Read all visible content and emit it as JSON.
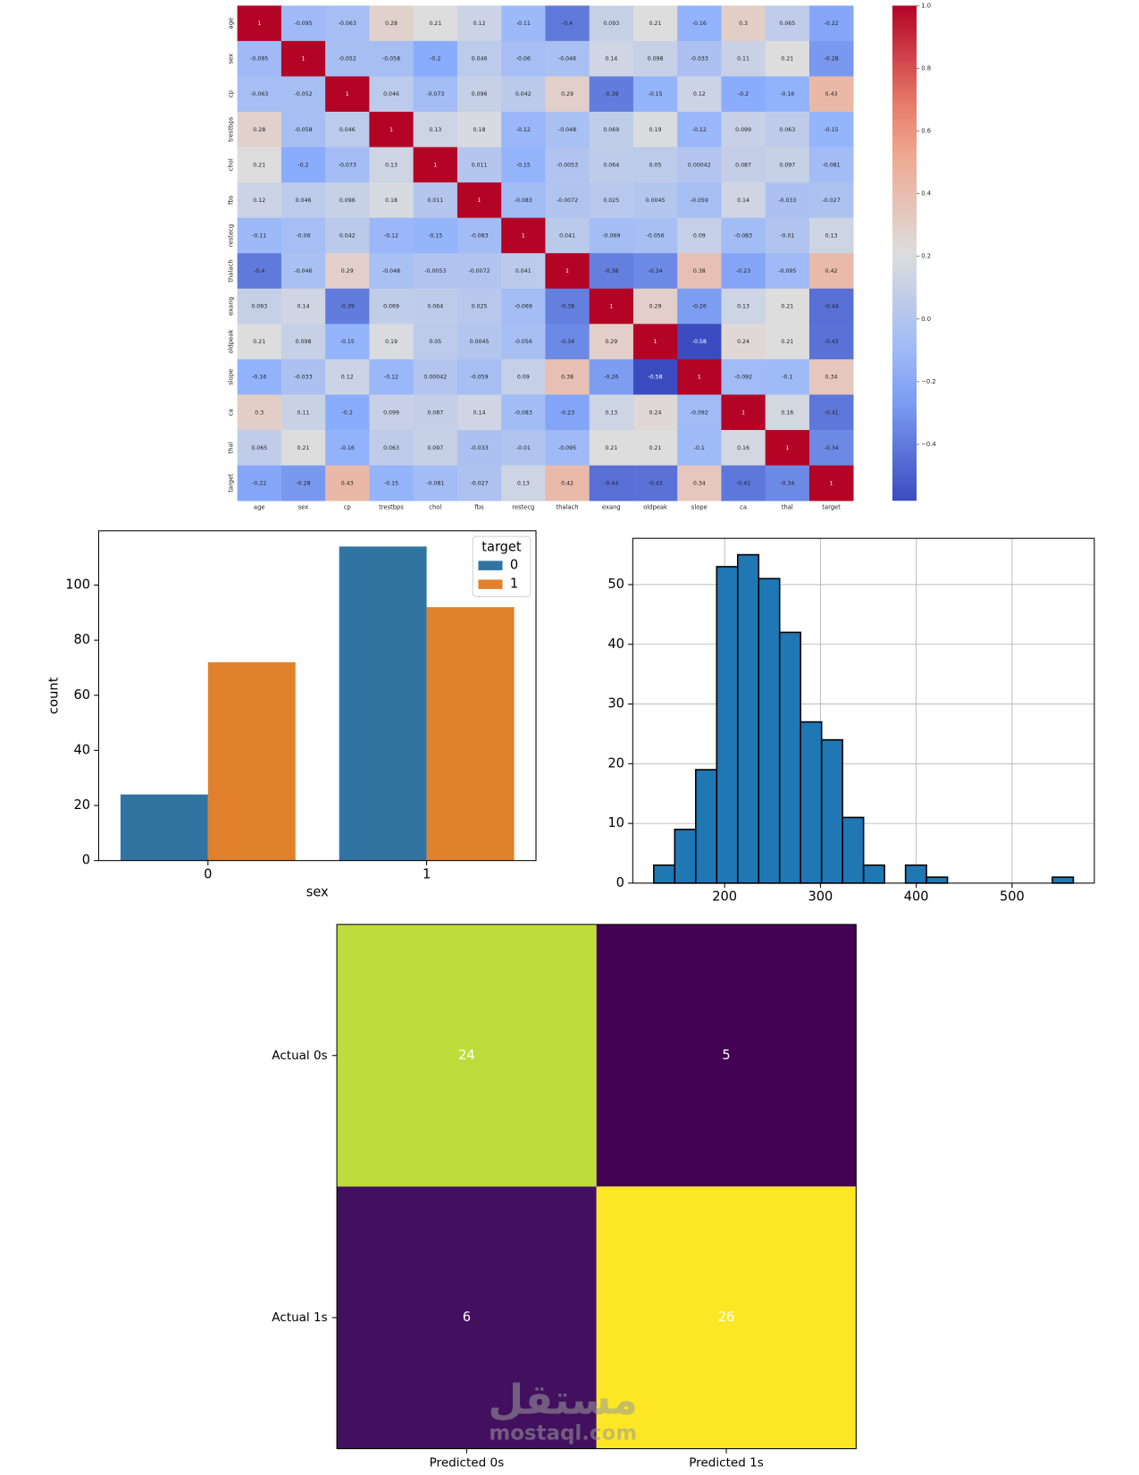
{
  "chart_data": [
    {
      "type": "heatmap",
      "colormap": "coolwarm",
      "zlim": [
        -0.58,
        1
      ],
      "categories": [
        "age",
        "sex",
        "cp",
        "trestbps",
        "chol",
        "fbs",
        "restecg",
        "thalach",
        "exang",
        "oldpeak",
        "slope",
        "ca",
        "thal",
        "target"
      ],
      "values": [
        [
          1,
          -0.095,
          -0.063,
          0.28,
          0.21,
          0.12,
          -0.11,
          -0.4,
          0.093,
          0.21,
          -0.16,
          0.3,
          0.065,
          -0.22
        ],
        [
          -0.095,
          1,
          -0.052,
          -0.058,
          -0.2,
          0.046,
          -0.06,
          -0.046,
          0.14,
          0.098,
          -0.033,
          0.11,
          0.21,
          -0.28
        ],
        [
          -0.063,
          -0.052,
          1,
          0.046,
          -0.073,
          0.096,
          0.042,
          0.29,
          -0.39,
          -0.15,
          0.12,
          -0.2,
          -0.16,
          0.43
        ],
        [
          0.28,
          -0.058,
          0.046,
          1,
          0.13,
          0.18,
          -0.12,
          -0.048,
          0.069,
          0.19,
          -0.12,
          0.099,
          0.063,
          -0.15
        ],
        [
          0.21,
          -0.2,
          -0.073,
          0.13,
          1,
          0.011,
          -0.15,
          -0.0053,
          0.064,
          0.05,
          0.00042,
          0.087,
          0.097,
          -0.081
        ],
        [
          0.12,
          0.046,
          0.096,
          0.18,
          0.011,
          1,
          -0.083,
          -0.0072,
          0.025,
          0.0045,
          -0.059,
          0.14,
          -0.033,
          -0.027
        ],
        [
          -0.11,
          -0.06,
          0.042,
          -0.12,
          -0.15,
          -0.083,
          1,
          0.041,
          -0.069,
          -0.056,
          0.09,
          -0.083,
          -0.01,
          0.13
        ],
        [
          -0.4,
          -0.046,
          0.29,
          -0.048,
          -0.0053,
          -0.0072,
          0.041,
          1,
          -0.38,
          -0.34,
          0.38,
          -0.23,
          -0.095,
          0.42
        ],
        [
          0.093,
          0.14,
          -0.39,
          0.069,
          0.064,
          0.025,
          -0.069,
          -0.38,
          1,
          0.29,
          -0.26,
          0.13,
          0.21,
          -0.44
        ],
        [
          0.21,
          0.098,
          -0.15,
          0.19,
          0.05,
          0.0045,
          -0.056,
          -0.34,
          0.29,
          1,
          -0.58,
          0.24,
          0.21,
          -0.43
        ],
        [
          -0.16,
          -0.033,
          0.12,
          -0.12,
          0.00042,
          -0.059,
          0.09,
          0.38,
          -0.26,
          -0.58,
          1,
          -0.092,
          -0.1,
          0.34
        ],
        [
          0.3,
          0.11,
          -0.2,
          0.099,
          0.087,
          0.14,
          -0.083,
          -0.23,
          0.13,
          0.24,
          -0.092,
          1,
          0.16,
          -0.41
        ],
        [
          0.065,
          0.21,
          -0.16,
          0.063,
          0.097,
          -0.033,
          -0.01,
          -0.095,
          0.21,
          0.21,
          -0.1,
          0.16,
          1,
          -0.34
        ],
        [
          -0.22,
          -0.28,
          0.43,
          -0.15,
          -0.081,
          -0.027,
          0.13,
          0.42,
          -0.44,
          -0.43,
          0.34,
          -0.41,
          -0.34,
          1
        ]
      ],
      "colorbar_ticks": [
        {
          "value": 1,
          "label": "1.0"
        },
        0.8,
        0.6,
        0.4,
        0.2,
        {
          "value": 0,
          "label": "0.0"
        },
        {
          "value": -0.2,
          "label": "−0.2"
        },
        {
          "value": -0.4,
          "label": "−0.4"
        }
      ]
    },
    {
      "type": "bar",
      "x_label": "sex",
      "y_label": "count",
      "categories": [
        "0",
        "1"
      ],
      "legend_title": "target",
      "legend": "upper right",
      "series": [
        {
          "name": "0",
          "color": "#3274a1",
          "values": [
            24,
            114
          ]
        },
        {
          "name": "1",
          "color": "#e1812c",
          "values": [
            72,
            92
          ]
        }
      ],
      "ylim": [
        0,
        119.7
      ],
      "yticks": [
        0,
        20,
        40,
        60,
        80,
        100
      ]
    },
    {
      "type": "histogram",
      "color": "#1f77b4",
      "edgecolor": "#000000",
      "grid": true,
      "bins": [
        126,
        147.9,
        169.8,
        191.7,
        213.6,
        235.5,
        257.4,
        279.3,
        301.2,
        323.1,
        345,
        366.9,
        388.8,
        410.7,
        432.6,
        454.5,
        476.4,
        498.3,
        520.2,
        542.1,
        564
      ],
      "values": [
        3,
        9,
        19,
        53,
        55,
        51,
        42,
        27,
        24,
        11,
        3,
        0,
        3,
        1,
        0,
        0,
        0,
        0,
        0,
        1
      ],
      "xlim": [
        104.1,
        585.9
      ],
      "ylim": [
        0,
        57.75
      ],
      "xticks": [
        200,
        300,
        400,
        500
      ],
      "yticks": [
        0,
        10,
        20,
        30,
        40,
        50
      ]
    },
    {
      "type": "confusion_matrix",
      "colormap": "viridis",
      "x_categories": [
        "Predicted 0s",
        "Predicted 1s"
      ],
      "y_categories": [
        "Actual 0s",
        "Actual 1s"
      ],
      "values": [
        [
          24,
          5
        ],
        [
          6,
          26
        ]
      ]
    }
  ],
  "watermark": {
    "arabic": "مستقل",
    "latin": "mostaql.com"
  }
}
